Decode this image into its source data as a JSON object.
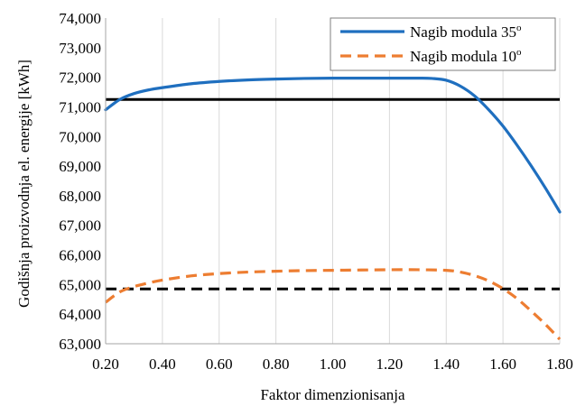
{
  "chart_data": {
    "type": "line",
    "title": "",
    "xlabel": "Faktor dimenzionisanja",
    "ylabel": "Godišnja proizvodnja el. energije [kWh]",
    "xlim": [
      0.2,
      1.8
    ],
    "ylim": [
      63000,
      74000
    ],
    "x_ticks": [
      "0.20",
      "0.40",
      "0.60",
      "0.80",
      "1.00",
      "1.20",
      "1.40",
      "1.60",
      "1.80"
    ],
    "y_ticks": [
      "63,000",
      "64,000",
      "65,000",
      "66,000",
      "67,000",
      "68,000",
      "69,000",
      "70,000",
      "71,000",
      "72,000",
      "73,000",
      "74,000"
    ],
    "grid": "vertical",
    "legend_position": "top-right",
    "series": [
      {
        "name": "Nagib modula 35",
        "name_sup": "o",
        "color": "#1f6fbf",
        "style": "solid",
        "x": [
          0.2,
          0.25,
          0.3,
          0.35,
          0.4,
          0.5,
          0.6,
          0.7,
          0.8,
          0.9,
          1.0,
          1.1,
          1.2,
          1.3,
          1.35,
          1.4,
          1.45,
          1.5,
          1.55,
          1.6,
          1.65,
          1.7,
          1.75,
          1.8
        ],
        "y": [
          70900,
          71250,
          71450,
          71570,
          71650,
          71780,
          71860,
          71910,
          71940,
          71960,
          71970,
          71970,
          71970,
          71970,
          71960,
          71900,
          71700,
          71370,
          70900,
          70350,
          69700,
          69000,
          68250,
          67450
        ]
      },
      {
        "name": "Nagib modula 10",
        "name_sup": "o",
        "color": "#ed7d31",
        "style": "dashed",
        "x": [
          0.2,
          0.25,
          0.3,
          0.35,
          0.4,
          0.5,
          0.6,
          0.7,
          0.8,
          0.9,
          1.0,
          1.1,
          1.2,
          1.3,
          1.4,
          1.45,
          1.5,
          1.55,
          1.6,
          1.65,
          1.7,
          1.75,
          1.8
        ],
        "y": [
          64400,
          64750,
          64930,
          65050,
          65150,
          65290,
          65370,
          65420,
          65450,
          65470,
          65480,
          65490,
          65500,
          65500,
          65480,
          65420,
          65300,
          65120,
          64860,
          64520,
          64100,
          63650,
          63150
        ]
      }
    ],
    "reference_lines": [
      {
        "y": 71250,
        "color": "#000000",
        "style": "solid"
      },
      {
        "y": 64850,
        "color": "#000000",
        "style": "dashed"
      }
    ]
  }
}
